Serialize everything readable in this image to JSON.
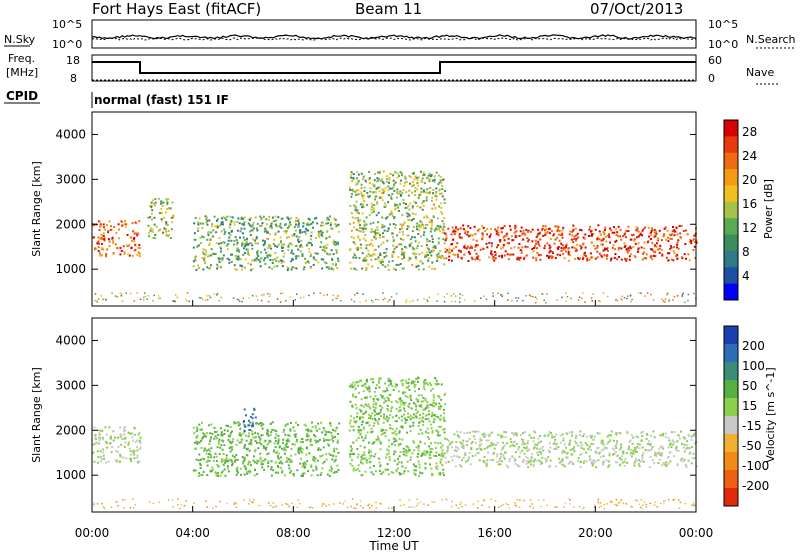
{
  "header": {
    "station": "Fort Hays East (fitACF)",
    "beam": "Beam 11",
    "date": "07/Oct/2013"
  },
  "strip": {
    "nsky_label": "N.Sky",
    "nsearch_label": "N.Search",
    "freq_label_line1": "Freq.",
    "freq_label_line2": "[MHz]",
    "nave_label": "Nave",
    "cpid_label": "CPID",
    "cpid_text": "normal (fast) 151 IF",
    "noise_ticks_left": [
      "10^5",
      "10^0"
    ],
    "noise_ticks_right": [
      "10^5",
      "10^0"
    ],
    "freq_ticks": [
      "18",
      "8"
    ],
    "nave_ticks": [
      "60",
      "0"
    ]
  },
  "colors": {
    "power": [
      "#0000ff",
      "#1e4fa0",
      "#2f7a86",
      "#3b8d5d",
      "#5aaa52",
      "#a6c24a",
      "#f0c020",
      "#f59a14",
      "#ef6a12",
      "#e83a0e",
      "#d80000"
    ],
    "velocity": [
      "#1a3fb0",
      "#2f6db8",
      "#3a8e78",
      "#55b040",
      "#8bd04c",
      "#c8c8c8",
      "#f0b030",
      "#f28a18",
      "#ef6010",
      "#e02a0c"
    ]
  },
  "chart_data": [
    {
      "type": "heatmap",
      "title": "Power",
      "xlabel": "Time UT",
      "ylabel": "Slant Range [km]",
      "x_ticks": [
        "00:00",
        "04:00",
        "08:00",
        "12:00",
        "16:00",
        "20:00",
        "00:00"
      ],
      "y_ticks": [
        "1000",
        "2000",
        "3000",
        "4000"
      ],
      "xlim_hours": [
        0,
        24
      ],
      "ylim_km": [
        180,
        4500
      ],
      "colorbar_label": "Power [dB]",
      "colorbar_ticks": [
        "4",
        "8",
        "12",
        "16",
        "20",
        "24",
        "28"
      ],
      "colorbar_range": [
        0,
        30
      ],
      "echo_regions": [
        {
          "t0": 0.0,
          "t1": 1.9,
          "r0": 1300,
          "r1": 2100,
          "level": 24
        },
        {
          "t0": 2.2,
          "t1": 3.2,
          "r0": 1700,
          "r1": 2600,
          "level": 14
        },
        {
          "t0": 4.0,
          "t1": 9.8,
          "r0": 1000,
          "r1": 2200,
          "level": 12
        },
        {
          "t0": 10.2,
          "t1": 14.0,
          "r0": 1000,
          "r1": 3200,
          "level": 14
        },
        {
          "t0": 14.0,
          "t1": 24.0,
          "r0": 1200,
          "r1": 2000,
          "level": 26
        }
      ]
    },
    {
      "type": "heatmap",
      "title": "Velocity",
      "xlabel": "Time UT",
      "ylabel": "Slant Range [km]",
      "x_ticks": [
        "00:00",
        "04:00",
        "08:00",
        "12:00",
        "16:00",
        "20:00",
        "00:00"
      ],
      "y_ticks": [
        "1000",
        "2000",
        "3000",
        "4000"
      ],
      "xlim_hours": [
        0,
        24
      ],
      "ylim_km": [
        180,
        4500
      ],
      "colorbar_label": "Velocity [m s^-1]",
      "colorbar_ticks": [
        "200",
        "100",
        "50",
        "15",
        "-15",
        "-50",
        "-100",
        "-200"
      ],
      "colorbar_range": [
        -250,
        250
      ],
      "echo_regions": [
        {
          "t0": 0.0,
          "t1": 1.9,
          "r0": 1300,
          "r1": 2100,
          "level": 0
        },
        {
          "t0": 4.0,
          "t1": 9.8,
          "r0": 1000,
          "r1": 2200,
          "level": 60
        },
        {
          "t0": 6.0,
          "t1": 6.5,
          "r0": 2000,
          "r1": 2500,
          "level": 180
        },
        {
          "t0": 10.2,
          "t1": 14.0,
          "r0": 1000,
          "r1": 3200,
          "level": 40
        },
        {
          "t0": 14.0,
          "t1": 24.0,
          "r0": 1200,
          "r1": 2000,
          "level": 0
        }
      ]
    }
  ]
}
